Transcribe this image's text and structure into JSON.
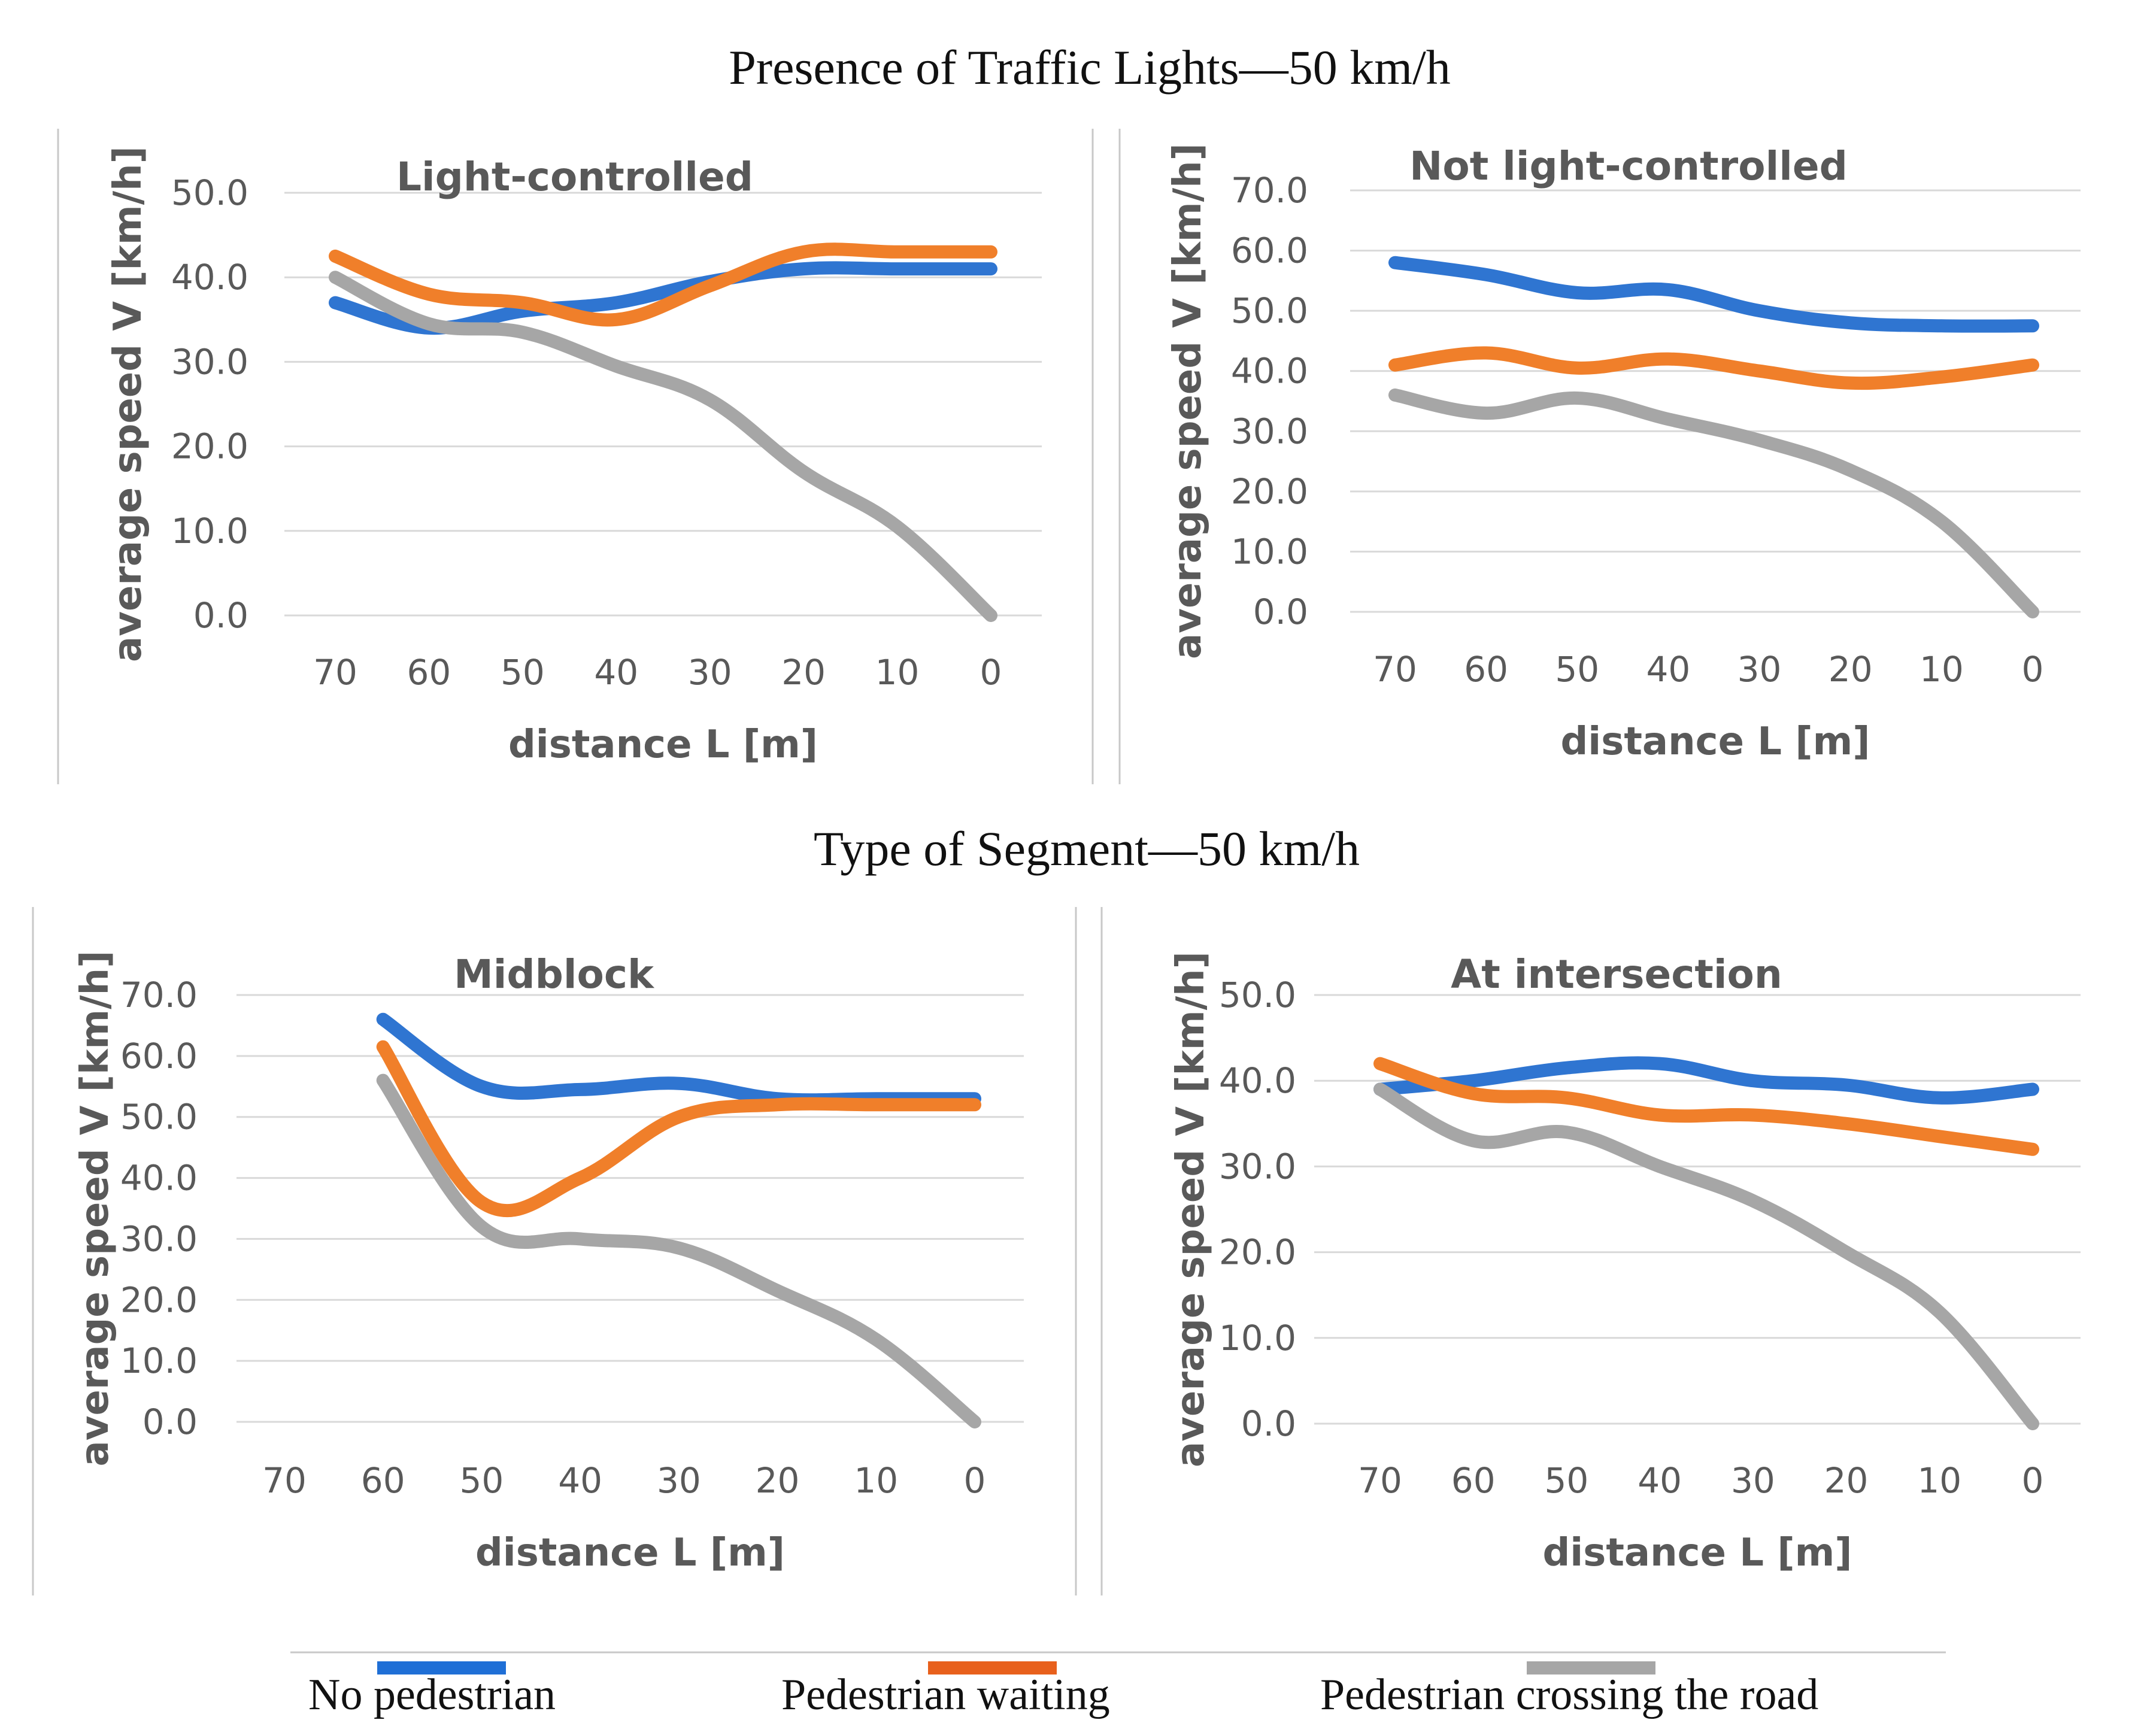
{
  "section_titles": {
    "top": "Presence of Traffic Lights—50 km/h",
    "bottom": "Type of Segment—50 km/h"
  },
  "series_meta": [
    {
      "name": "No pedestrian",
      "color": "#2f75d1"
    },
    {
      "name": "Pedestrian waiting",
      "color": "#f07f2a"
    },
    {
      "name": "Pedestrian crossing the road",
      "color": "#a6a6a6"
    }
  ],
  "legend_colors": [
    "#1f6fd6",
    "#e8601c",
    "#a6a6a6"
  ],
  "chart_data": [
    {
      "type": "line",
      "title": "Light-controlled",
      "xlabel": "distance L [m]",
      "ylabel": "average speed V [km/h]",
      "categories": [
        "70",
        "60",
        "50",
        "40",
        "30",
        "20",
        "10",
        "0"
      ],
      "ylim": [
        0,
        50
      ],
      "yticks": [
        "0.0",
        "10.0",
        "20.0",
        "30.0",
        "40.0",
        "50.0"
      ],
      "series": [
        {
          "name": "No pedestrian",
          "values": [
            37.0,
            34.0,
            36.0,
            37.0,
            39.5,
            41.0,
            41.0,
            41.0
          ]
        },
        {
          "name": "Pedestrian waiting",
          "values": [
            42.5,
            38.0,
            37.0,
            35.0,
            39.0,
            43.0,
            43.0,
            43.0
          ]
        },
        {
          "name": "Pedestrian crossing the road",
          "values": [
            40.0,
            34.5,
            33.5,
            29.5,
            25.5,
            17.0,
            10.5,
            0.0
          ]
        }
      ]
    },
    {
      "type": "line",
      "title": "Not light-controlled",
      "xlabel": "distance L [m]",
      "ylabel": "average speed V [km/h]",
      "categories": [
        "70",
        "60",
        "50",
        "40",
        "30",
        "20",
        "10",
        "0"
      ],
      "ylim": [
        0,
        70
      ],
      "yticks": [
        "0.0",
        "10.0",
        "20.0",
        "30.0",
        "40.0",
        "50.0",
        "60.0",
        "70.0"
      ],
      "series": [
        {
          "name": "No pedestrian",
          "values": [
            58.0,
            56.0,
            53.0,
            53.5,
            50.0,
            48.0,
            47.5,
            47.5
          ]
        },
        {
          "name": "Pedestrian waiting",
          "values": [
            41.0,
            43.0,
            40.5,
            42.0,
            40.0,
            38.0,
            39.0,
            41.0
          ]
        },
        {
          "name": "Pedestrian crossing the road",
          "values": [
            36.0,
            33.0,
            35.5,
            32.0,
            28.5,
            23.5,
            15.0,
            0.0
          ]
        }
      ]
    },
    {
      "type": "line",
      "title": "Midblock",
      "xlabel": "distance L [m]",
      "ylabel": "average speed V [km/h]",
      "categories": [
        "70",
        "60",
        "50",
        "40",
        "30",
        "20",
        "10",
        "0"
      ],
      "ylim": [
        0,
        70
      ],
      "yticks": [
        "0.0",
        "10.0",
        "20.0",
        "30.0",
        "40.0",
        "50.0",
        "60.0",
        "70.0"
      ],
      "series": [
        {
          "name": "No pedestrian",
          "values": [
            null,
            66.0,
            55.0,
            54.5,
            55.5,
            53.0,
            53.0,
            53.0
          ]
        },
        {
          "name": "Pedestrian waiting",
          "values": [
            null,
            61.5,
            36.0,
            40.0,
            50.0,
            52.0,
            52.0,
            52.0
          ]
        },
        {
          "name": "Pedestrian crossing the road",
          "values": [
            null,
            56.0,
            32.0,
            30.0,
            28.5,
            21.5,
            13.5,
            0.0
          ]
        }
      ]
    },
    {
      "type": "line",
      "title": "At intersection",
      "xlabel": "distance L [m]",
      "ylabel": "average speed V [km/h]",
      "categories": [
        "70",
        "60",
        "50",
        "40",
        "30",
        "20",
        "10",
        "0"
      ],
      "ylim": [
        0,
        50
      ],
      "yticks": [
        "0.0",
        "10.0",
        "20.0",
        "30.0",
        "40.0",
        "50.0"
      ],
      "series": [
        {
          "name": "No pedestrian",
          "values": [
            39.0,
            40.0,
            41.5,
            42.0,
            40.0,
            39.5,
            38.0,
            39.0
          ]
        },
        {
          "name": "Pedestrian waiting",
          "values": [
            42.0,
            38.5,
            38.0,
            36.0,
            36.0,
            35.0,
            33.5,
            32.0
          ]
        },
        {
          "name": "Pedestrian crossing the road",
          "values": [
            39.0,
            33.0,
            34.0,
            30.0,
            26.0,
            20.0,
            13.0,
            0.0
          ]
        }
      ]
    }
  ]
}
